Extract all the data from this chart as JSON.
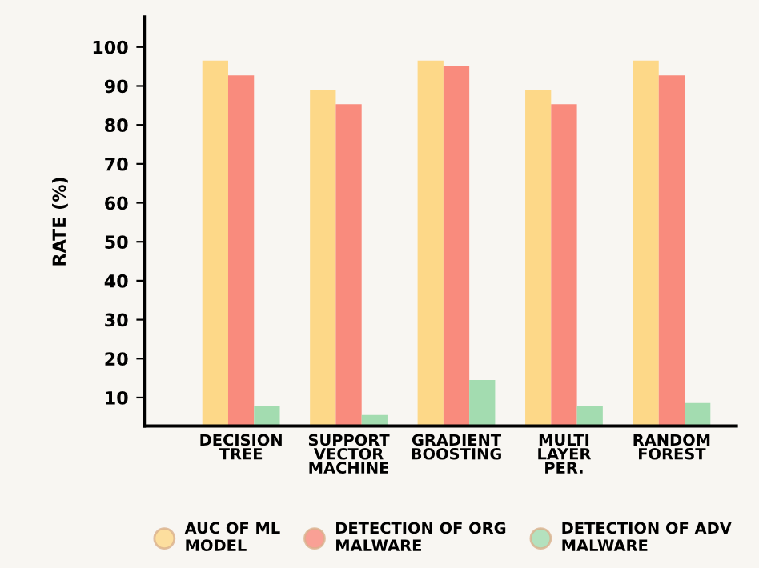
{
  "chart_data": {
    "type": "bar",
    "ylabel": "RATE (%)",
    "categories": [
      "DECISION\nTREE",
      "SUPPORT\nVECTOR\nMACHINE",
      "GRADIENT\nBOOSTING",
      "MULTI\nLAYER\nPER.",
      "RANDOM\nFOREST"
    ],
    "series": [
      {
        "name": "AUC OF ML\nMODEL",
        "color": "#fdd888",
        "values": [
          96.5,
          88.9,
          96.5,
          88.9,
          96.5
        ]
      },
      {
        "name": "DETECTION OF ORG\nMALWARE",
        "color": "#f98b7d",
        "values": [
          92.7,
          85.3,
          95.1,
          85.3,
          92.7
        ]
      },
      {
        "name": "DETECTION OF ADV\nMALWARE",
        "color": "#a3dcb0",
        "values": [
          7.8,
          5.5,
          14.5,
          7.8,
          8.6
        ]
      }
    ],
    "ylim": [
      2.7,
      107.7
    ],
    "yticks": [
      10,
      20,
      30,
      40,
      50,
      60,
      70,
      80,
      90,
      100
    ],
    "grid": false,
    "legend": "bottom"
  }
}
